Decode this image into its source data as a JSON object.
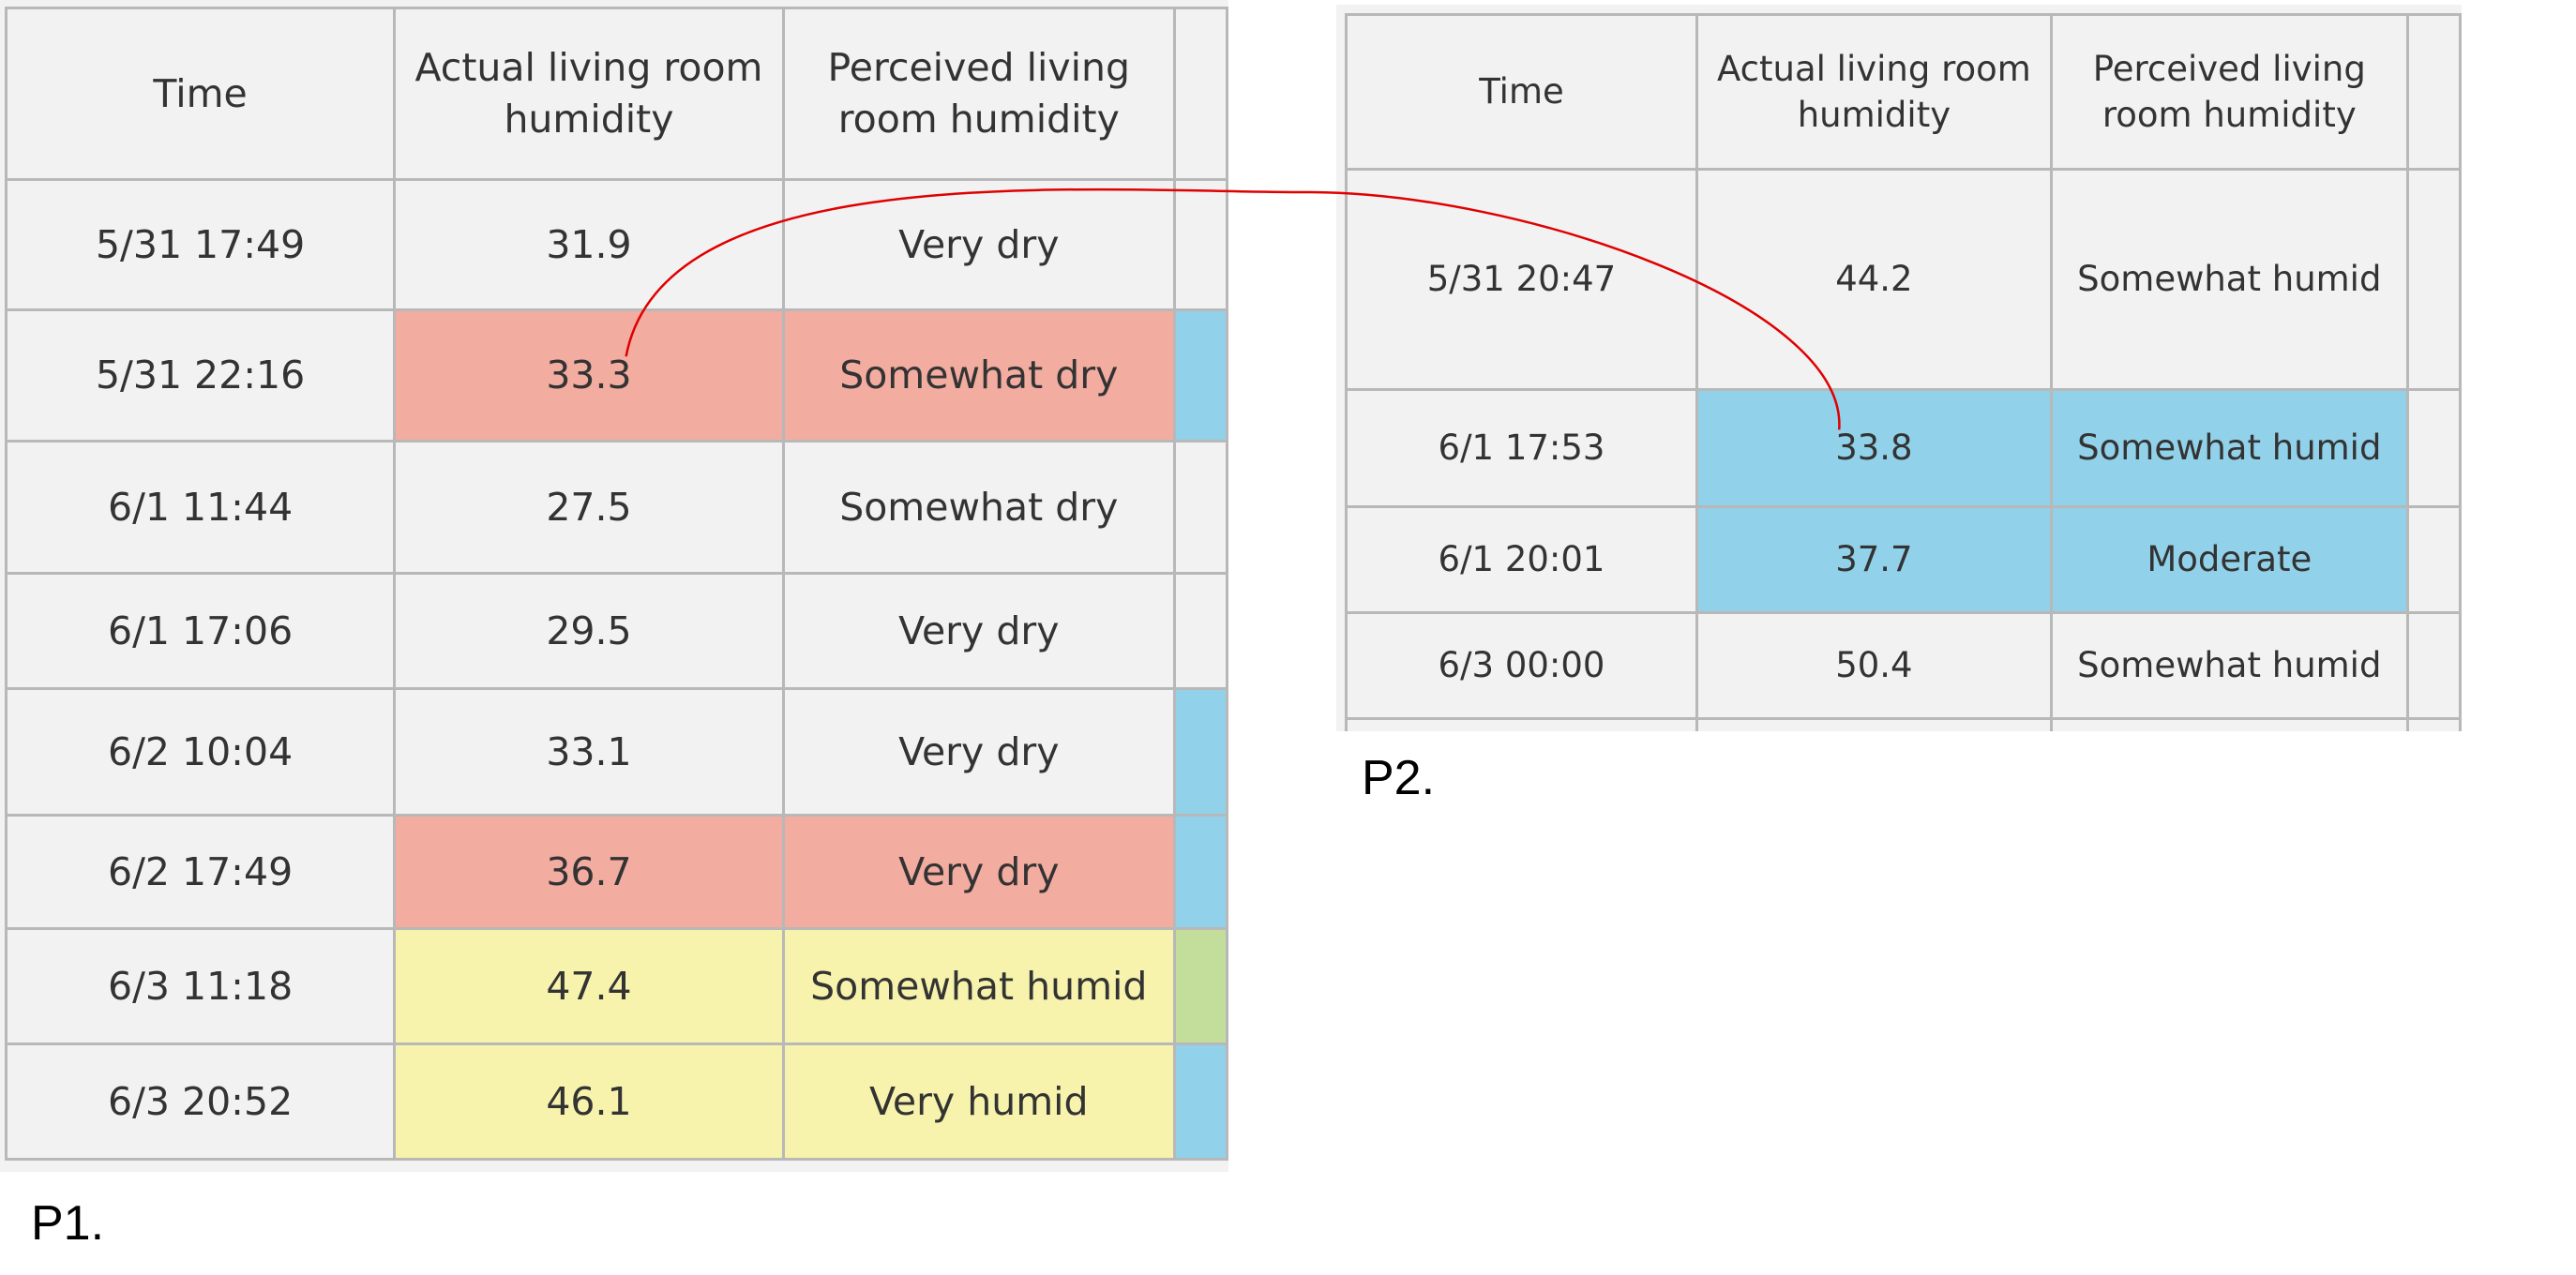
{
  "colors": {
    "background": "#f2f2f2",
    "red": "#f2aca0",
    "yellow": "#f7f3ac",
    "blue": "#91d1e9",
    "green": "#c3dd9b",
    "connector": "#e00000"
  },
  "p1": {
    "label": "P1.",
    "headers": [
      "Time",
      "Actual living room humidity",
      "Perceived living room humidity"
    ],
    "rows": [
      {
        "time": "5/31 17:49",
        "actual": "31.9",
        "perceived": "Very dry"
      },
      {
        "time": "5/31 22:16",
        "actual": "33.3",
        "perceived": "Somewhat dry"
      },
      {
        "time": "6/1 11:44",
        "actual": "27.5",
        "perceived": "Somewhat dry"
      },
      {
        "time": "6/1 17:06",
        "actual": "29.5",
        "perceived": "Very dry"
      },
      {
        "time": "6/2 10:04",
        "actual": "33.1",
        "perceived": "Very dry"
      },
      {
        "time": "6/2 17:49",
        "actual": "36.7",
        "perceived": "Very dry"
      },
      {
        "time": "6/3 11:18",
        "actual": "47.4",
        "perceived": "Somewhat humid"
      },
      {
        "time": "6/3 20:52",
        "actual": "46.1",
        "perceived": "Very humid"
      }
    ]
  },
  "p2": {
    "label": "P2.",
    "headers": [
      "Time",
      "Actual living room humidity",
      "Perceived living room humidity"
    ],
    "rows": [
      {
        "time": "5/31 20:47",
        "actual": "44.2",
        "perceived": "Somewhat humid"
      },
      {
        "time": "6/1 17:53",
        "actual": "33.8",
        "perceived": "Somewhat humid"
      },
      {
        "time": "6/1 20:01",
        "actual": "37.7",
        "perceived": "Moderate"
      },
      {
        "time": "6/3 00:00",
        "actual": "50.4",
        "perceived": "Somewhat humid"
      }
    ]
  }
}
